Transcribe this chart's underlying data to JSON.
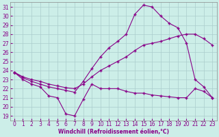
{
  "background_color": "#cceee8",
  "grid_color": "#aacccc",
  "line_color": "#880088",
  "xlabel": "Windchill (Refroidissement éolien,°C)",
  "xlim": [
    -0.5,
    23.5
  ],
  "ylim": [
    18.5,
    31.5
  ],
  "xticks": [
    0,
    1,
    2,
    3,
    4,
    5,
    6,
    7,
    8,
    9,
    10,
    11,
    12,
    13,
    14,
    15,
    16,
    17,
    18,
    19,
    20,
    21,
    22,
    23
  ],
  "yticks": [
    19,
    20,
    21,
    22,
    23,
    24,
    25,
    26,
    27,
    28,
    29,
    30,
    31
  ],
  "line1_x": [
    0,
    1,
    2,
    3,
    4,
    5,
    6,
    7,
    8,
    9,
    10,
    11,
    12,
    13,
    14,
    15,
    16,
    17,
    18,
    19,
    20,
    21,
    22,
    23
  ],
  "line1_y": [
    23.8,
    23.0,
    22.5,
    22.2,
    21.2,
    21.0,
    19.2,
    19.0,
    20.8,
    22.5,
    22.0,
    22.0,
    22.0,
    21.7,
    21.5,
    21.5,
    21.3,
    21.2,
    21.1,
    21.0,
    21.0,
    22.0,
    21.7,
    21.0
  ],
  "line2_x": [
    0,
    1,
    2,
    3,
    4,
    5,
    6,
    7,
    8,
    9,
    10,
    11,
    12,
    13,
    14,
    15,
    16,
    17,
    18,
    19,
    20,
    21,
    22,
    23
  ],
  "line2_y": [
    23.8,
    23.3,
    23.0,
    22.8,
    22.5,
    22.3,
    22.1,
    22.0,
    22.5,
    23.3,
    24.0,
    24.5,
    25.0,
    25.5,
    26.2,
    26.8,
    27.0,
    27.2,
    27.5,
    27.8,
    28.0,
    28.0,
    27.5,
    26.8
  ],
  "line3_x": [
    0,
    1,
    2,
    3,
    4,
    5,
    6,
    7,
    8,
    9,
    10,
    11,
    12,
    13,
    14,
    15,
    16,
    17,
    18,
    19,
    20,
    21,
    22,
    23
  ],
  "line3_y": [
    23.8,
    23.2,
    22.8,
    22.5,
    22.2,
    22.0,
    21.8,
    21.6,
    22.8,
    24.2,
    25.5,
    26.5,
    27.2,
    28.0,
    30.2,
    31.2,
    31.0,
    30.0,
    29.2,
    28.7,
    27.0,
    23.0,
    22.2,
    21.0
  ]
}
